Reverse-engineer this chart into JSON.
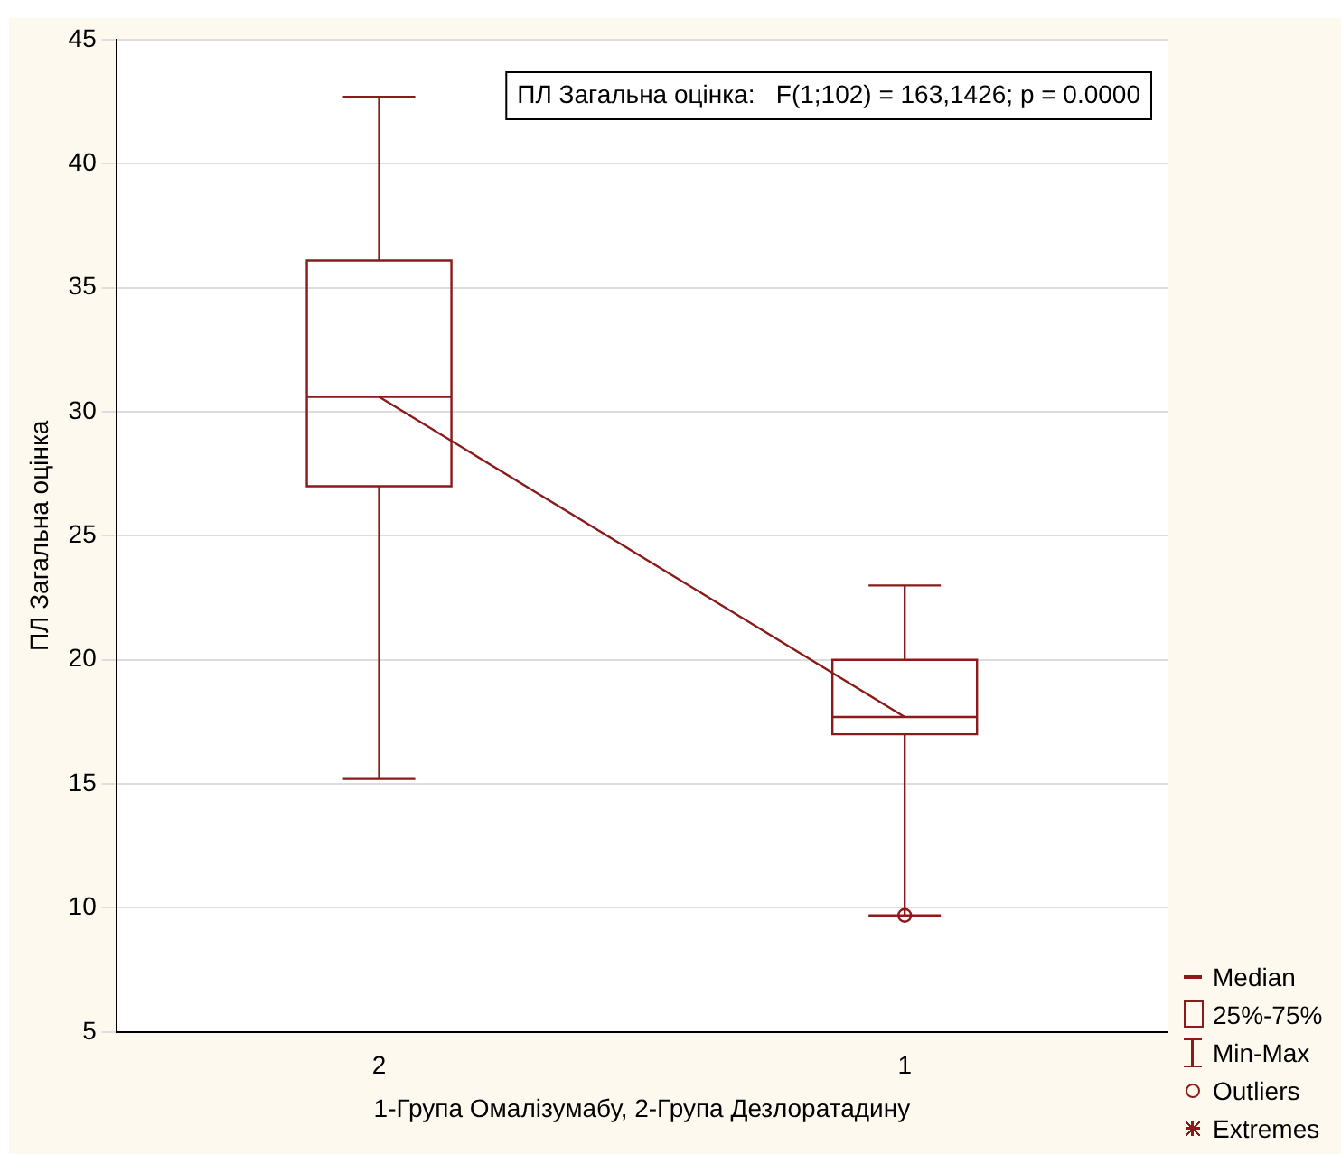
{
  "chart_data": {
    "type": "box",
    "xlabel": "1-Група Омалізумабу, 2-Група Дезлоратадину",
    "ylabel": "ПЛ Загальна оцінка",
    "categories": [
      "2",
      "1"
    ],
    "boxes": [
      {
        "low": 15.2,
        "q1": 27.0,
        "median": 30.6,
        "q3": 36.1,
        "high": 42.7
      },
      {
        "low": 9.7,
        "q1": 17.0,
        "median": 17.7,
        "q3": 20.0,
        "high": 23.0,
        "outliers": [
          9.7
        ]
      }
    ],
    "color": "#8b1a1a",
    "series": [
      {
        "type": "line",
        "color": "#8b1a1a",
        "values": [
          30.6,
          17.7
        ]
      }
    ],
    "ylim": [
      5,
      45
    ],
    "yticks": [
      5,
      10,
      15,
      20,
      25,
      30,
      35,
      40,
      45
    ],
    "grid": "y",
    "marker": "none",
    "annotations": [
      "ПЛ Загальна оцінка:   F(1;102) = 163,1426; p = 0.0000",
      "Median",
      "25%-75%",
      "Min-Max",
      "Outliers",
      "Extremes"
    ]
  }
}
